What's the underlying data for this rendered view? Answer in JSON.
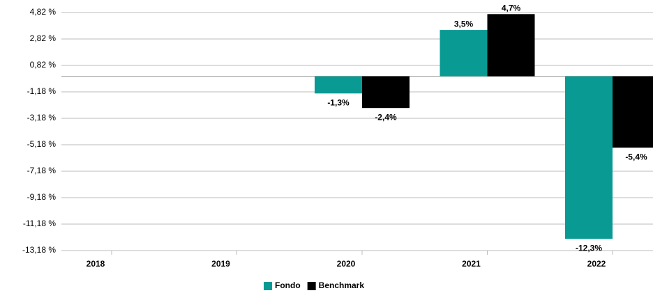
{
  "chart_data": {
    "type": "bar",
    "categories": [
      "2018",
      "2019",
      "2020",
      "2021",
      "2022"
    ],
    "series": [
      {
        "name": "Fondo",
        "color": "#0a9a94",
        "values": [
          null,
          null,
          -1.3,
          3.5,
          -12.3
        ],
        "value_labels": [
          null,
          null,
          "-1,3%",
          "3,5%",
          "-12,3%"
        ]
      },
      {
        "name": "Benchmark",
        "color": "#000000",
        "values": [
          null,
          null,
          -2.4,
          4.7,
          -5.4
        ],
        "value_labels": [
          null,
          null,
          "-2,4%",
          "4,7%",
          "-5,4%"
        ]
      }
    ],
    "ylim": [
      -13.18,
      4.82
    ],
    "yticks": [
      {
        "value": 4.82,
        "label": "4,82 %"
      },
      {
        "value": 2.82,
        "label": "2,82 %"
      },
      {
        "value": 0.82,
        "label": "0,82 %"
      },
      {
        "value": -1.18,
        "label": "-1,18 %"
      },
      {
        "value": -3.18,
        "label": "-3,18 %"
      },
      {
        "value": -5.18,
        "label": "-5,18 %"
      },
      {
        "value": -7.18,
        "label": "-7,18 %"
      },
      {
        "value": -9.18,
        "label": "-9,18 %"
      },
      {
        "value": -11.18,
        "label": "-11,18 %"
      },
      {
        "value": -13.18,
        "label": "-13,18 %"
      }
    ],
    "grid": true,
    "legend": "bottom"
  }
}
